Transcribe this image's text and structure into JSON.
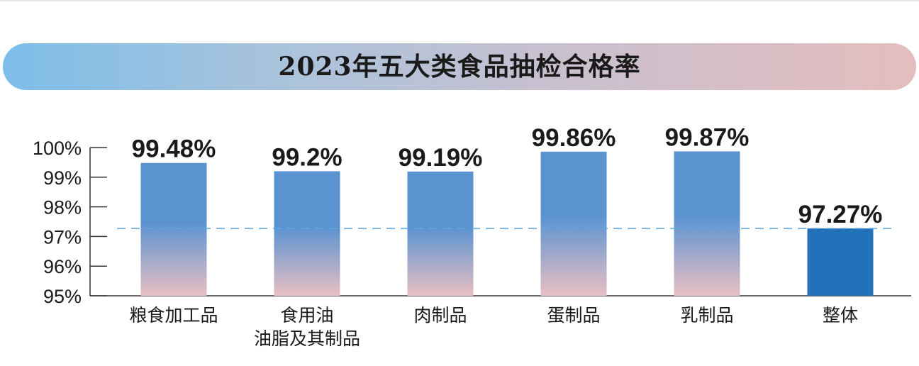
{
  "chart_data": {
    "type": "bar",
    "title": "2023年五大类食品抽检合格率",
    "xlabel": "",
    "ylabel": "",
    "ylim": [
      95,
      100
    ],
    "yticks": [
      {
        "value": 95,
        "label": "95%"
      },
      {
        "value": 96,
        "label": "96%"
      },
      {
        "value": 97,
        "label": "97%"
      },
      {
        "value": 98,
        "label": "98%"
      },
      {
        "value": 99,
        "label": "99%"
      },
      {
        "value": 100,
        "label": "100%"
      }
    ],
    "categories": [
      [
        "粮食加工品"
      ],
      [
        "食用油",
        "油脂及其制品"
      ],
      [
        "肉制品"
      ],
      [
        "蛋制品"
      ],
      [
        "乳制品"
      ],
      [
        "整体"
      ]
    ],
    "values": [
      99.48,
      99.2,
      99.19,
      99.86,
      99.87,
      97.27
    ],
    "value_labels": [
      "99.48%",
      "99.2%",
      "99.19%",
      "99.86%",
      "99.87%",
      "97.27%"
    ],
    "highlight_index": 5,
    "reference_line": {
      "value": 97.27,
      "style": "dashed"
    },
    "grid": false,
    "colors": {
      "bar_top": "#5b93d1",
      "bar_bottom": "#e8bfc3",
      "highlight_bar": "#2271b9",
      "highlight_label": "#2271b9",
      "reference_line": "#5fa8dc",
      "axis": "#333333"
    }
  }
}
